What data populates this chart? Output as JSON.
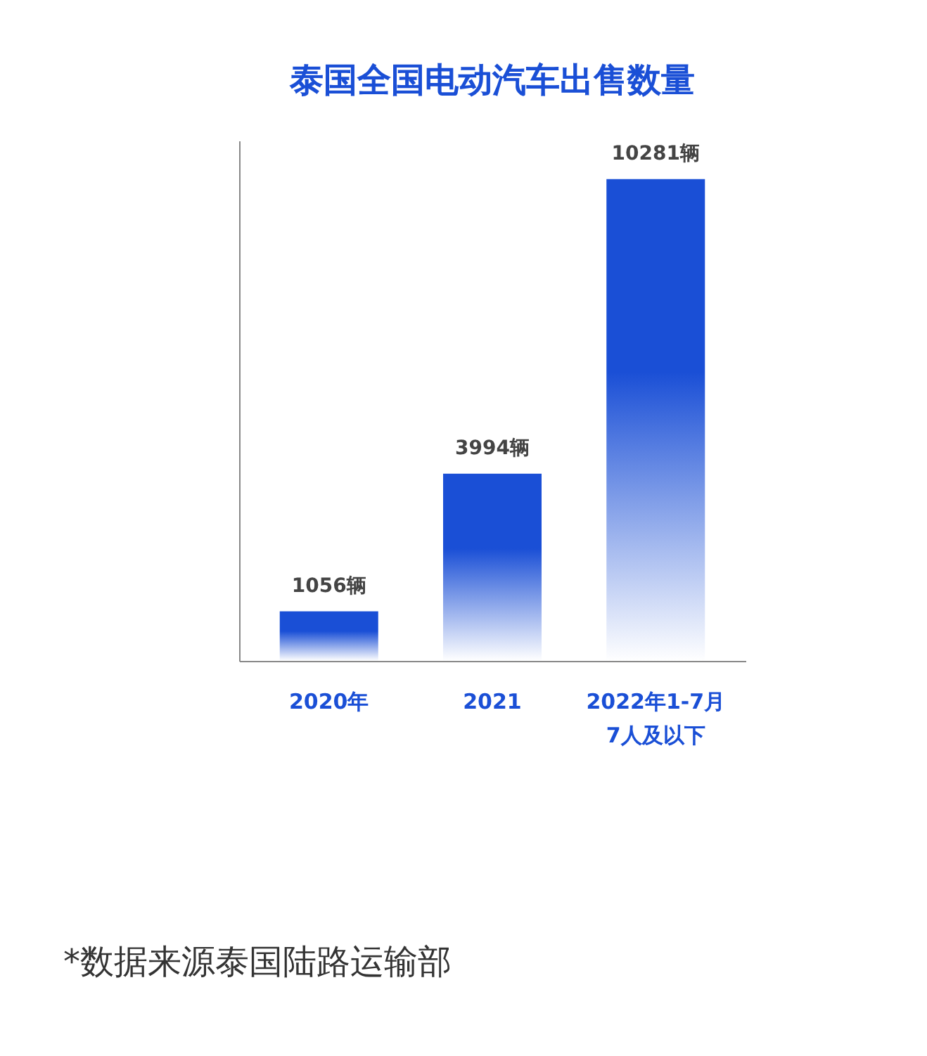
{
  "chart_data": {
    "type": "bar",
    "title": "泰国全国电动汽车出售数量",
    "categories": [
      "2020年",
      "2021",
      "2022年1-7月\n7人及以下"
    ],
    "values": [
      1056,
      3994,
      10281
    ],
    "value_labels": [
      "1056辆",
      "3994辆",
      "10281辆"
    ],
    "color": "#1a4fd6",
    "grid": false,
    "annotations": [
      "*数据来源泰国陆路运输部"
    ]
  }
}
